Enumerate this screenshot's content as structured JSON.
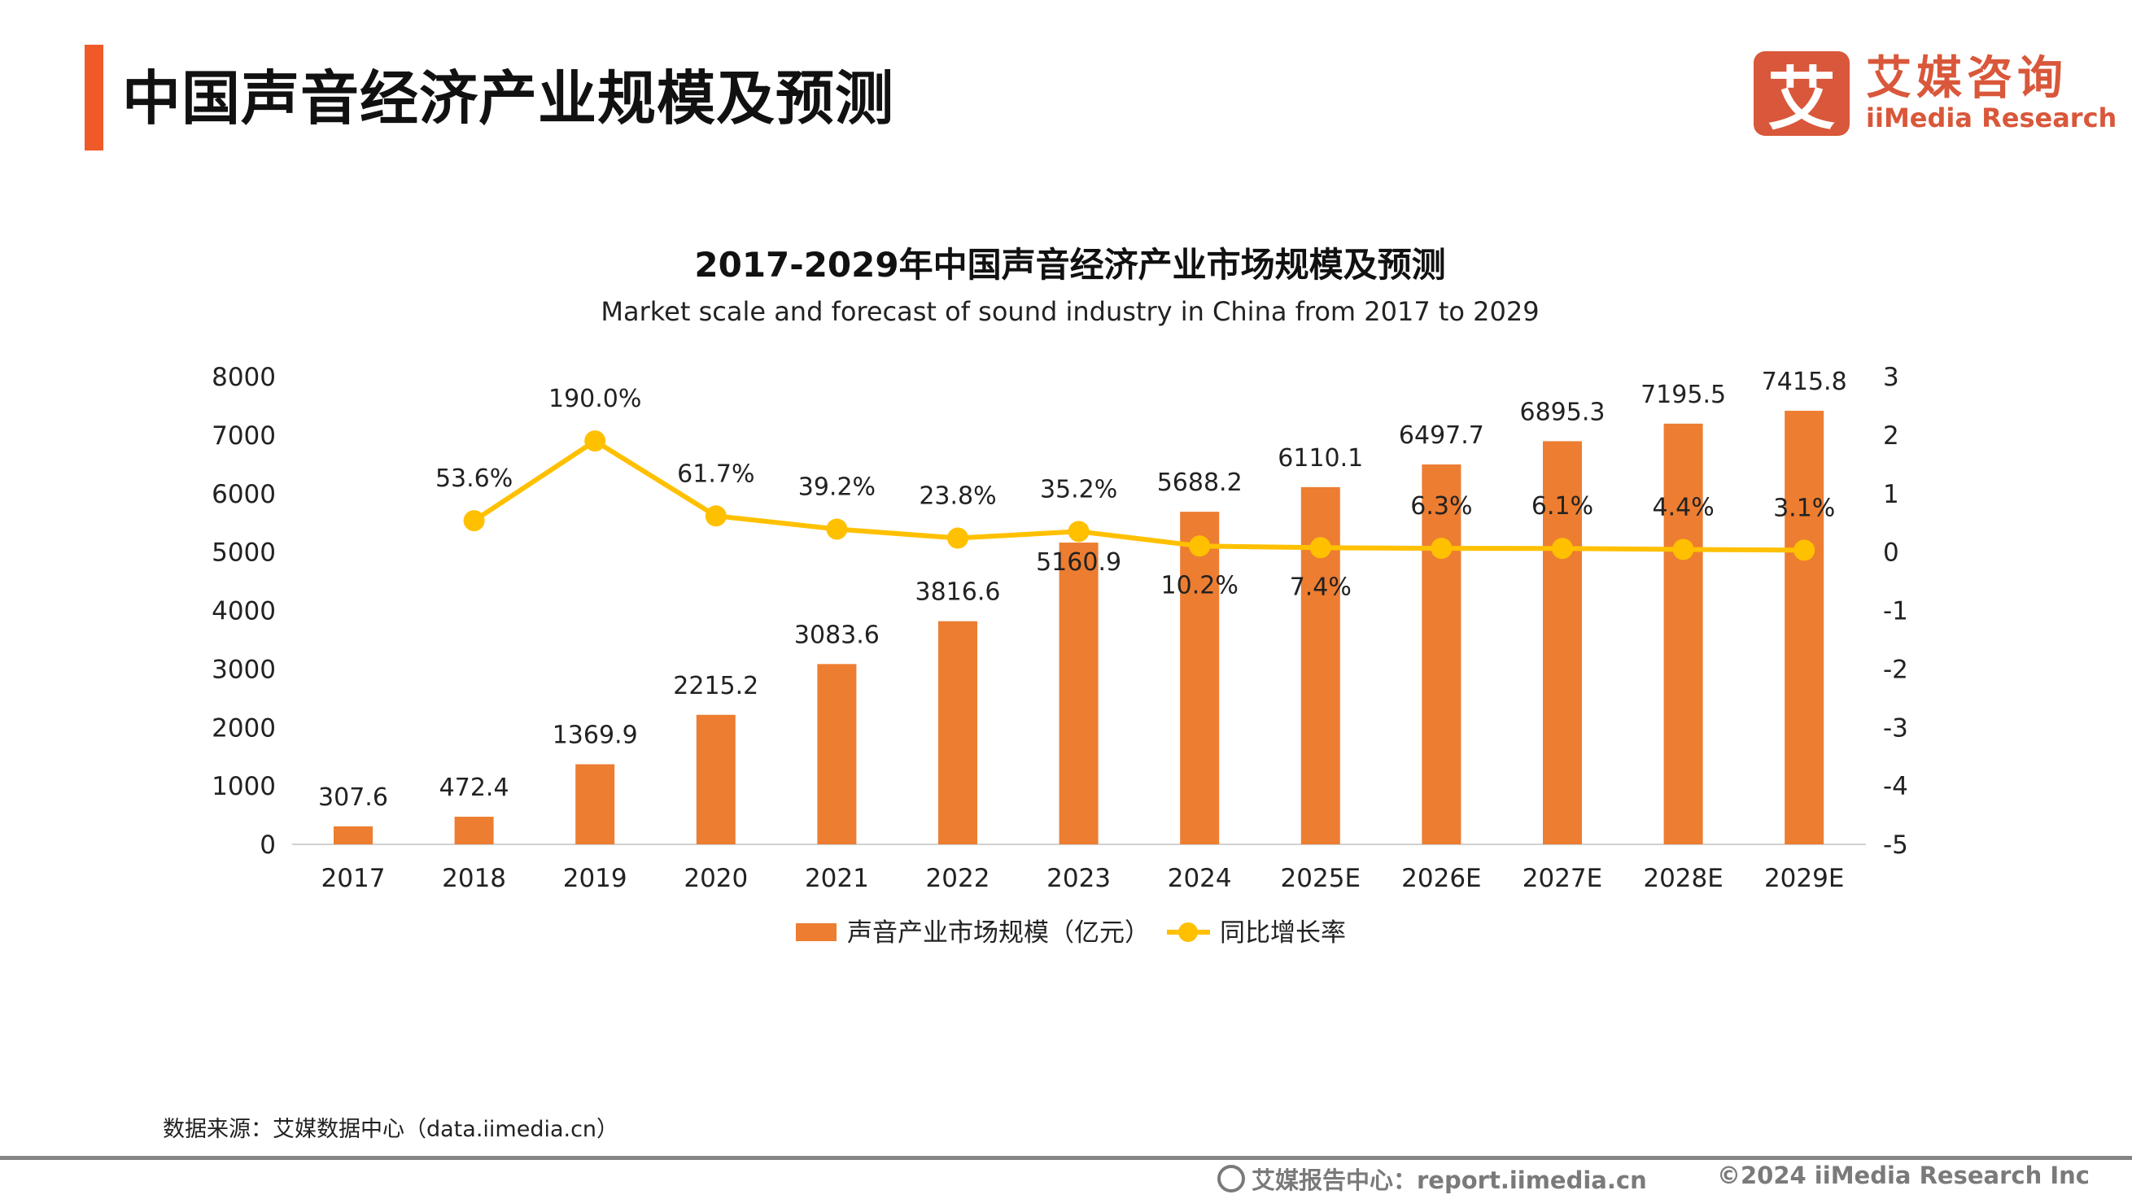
{
  "header": {
    "title": "中国声音经济产业规模及预测",
    "logo_cn": "艾媒咨询",
    "logo_en": "iiMedia Research",
    "logo_mark": "艾"
  },
  "colors": {
    "accent": "#F05A28",
    "bar": "#ED7D31",
    "line": "#FFC000",
    "logo": "#D9573A"
  },
  "chart_data": {
    "type": "bar+line",
    "title": "2017-2029年中国声音经济产业市场规模及预测",
    "subtitle": "Market scale and forecast of sound industry in China from 2017 to 2029",
    "categories": [
      "2017",
      "2018",
      "2019",
      "2020",
      "2021",
      "2022",
      "2023",
      "2024",
      "2025E",
      "2026E",
      "2027E",
      "2028E",
      "2029E"
    ],
    "series": [
      {
        "name": "声音产业市场规模（亿元）",
        "type": "bar",
        "axis": "left",
        "values": [
          307.6,
          472.4,
          1369.9,
          2215.2,
          3083.6,
          3816.6,
          5160.9,
          5688.2,
          6110.1,
          6497.7,
          6895.3,
          7195.5,
          7415.8
        ],
        "labels": [
          "307.6",
          "472.4",
          "1369.9",
          "2215.2",
          "3083.6",
          "3816.6",
          "5160.9",
          "5688.2",
          "6110.1",
          "6497.7",
          "6895.3",
          "7195.5",
          "7415.8"
        ]
      },
      {
        "name": "同比增长率",
        "type": "line",
        "axis": "right",
        "values": [
          null,
          0.536,
          1.9,
          0.617,
          0.392,
          0.238,
          0.352,
          0.102,
          0.074,
          0.063,
          0.061,
          0.044,
          0.031
        ],
        "labels": [
          "",
          "53.6%",
          "190.0%",
          "61.7%",
          "39.2%",
          "23.8%",
          "35.2%",
          "10.2%",
          "7.4%",
          "6.3%",
          "6.1%",
          "4.4%",
          "3.1%"
        ]
      }
    ],
    "y_left": {
      "range": [
        0,
        8000
      ],
      "ticks": [
        "0",
        "1000",
        "2000",
        "3000",
        "4000",
        "5000",
        "6000",
        "7000",
        "8000"
      ]
    },
    "y_right": {
      "range": [
        -5,
        3
      ],
      "ticks": [
        "-5",
        "-4",
        "-3",
        "-2",
        "-1",
        "0",
        "1",
        "2",
        "3"
      ]
    },
    "grid": false,
    "legend_position": "bottom"
  },
  "footer": {
    "source": "数据来源：艾媒数据中心（data.iimedia.cn）",
    "report_center": "艾媒报告中心：report.iimedia.cn",
    "copyright": "©2024  iiMedia Research  Inc"
  }
}
